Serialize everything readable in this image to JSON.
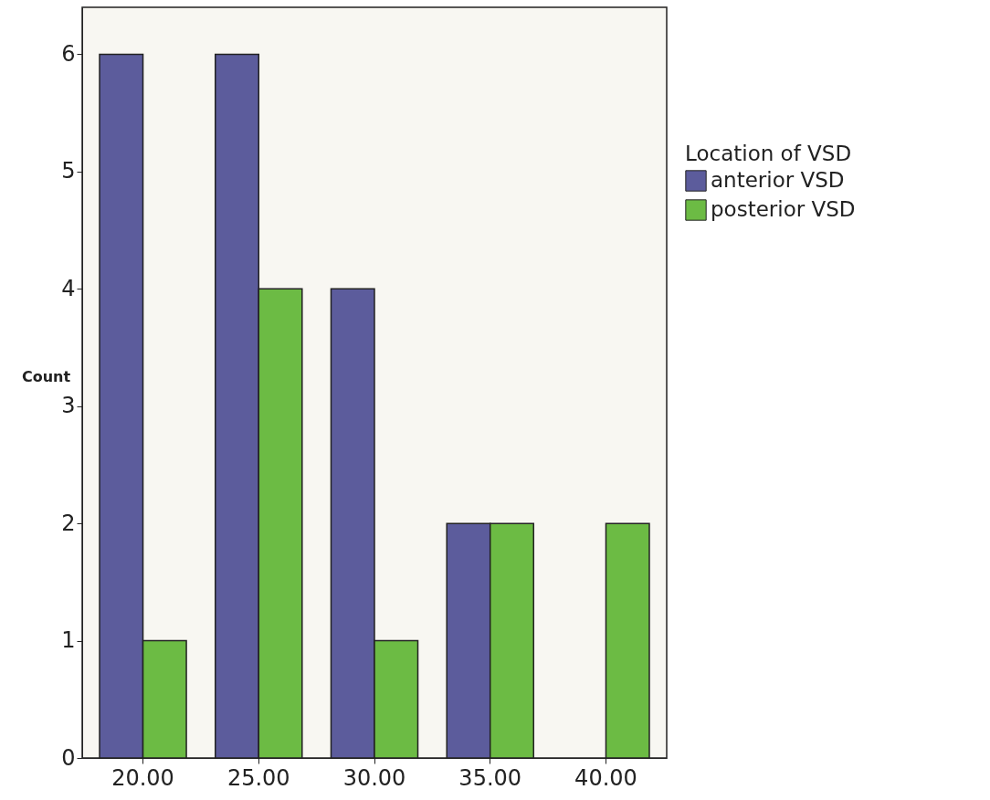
{
  "chart_data": {
    "type": "bar",
    "ylabel": "Count",
    "legend_title": "Location of VSD",
    "legend": "right",
    "categories": [
      "20.00",
      "25.00",
      "30.00",
      "35.00",
      "40.00"
    ],
    "series": [
      {
        "name": "anterior VSD",
        "color": "#5c5c9c",
        "values": [
          6,
          6,
          4,
          2,
          null
        ]
      },
      {
        "name": "posterior VSD",
        "color": "#6cbb44",
        "values": [
          1,
          4,
          1,
          2,
          2
        ]
      }
    ],
    "ylim": [
      0,
      6.4
    ],
    "yticks": [
      0,
      1,
      2,
      3,
      4,
      5,
      6
    ],
    "grid": false
  }
}
